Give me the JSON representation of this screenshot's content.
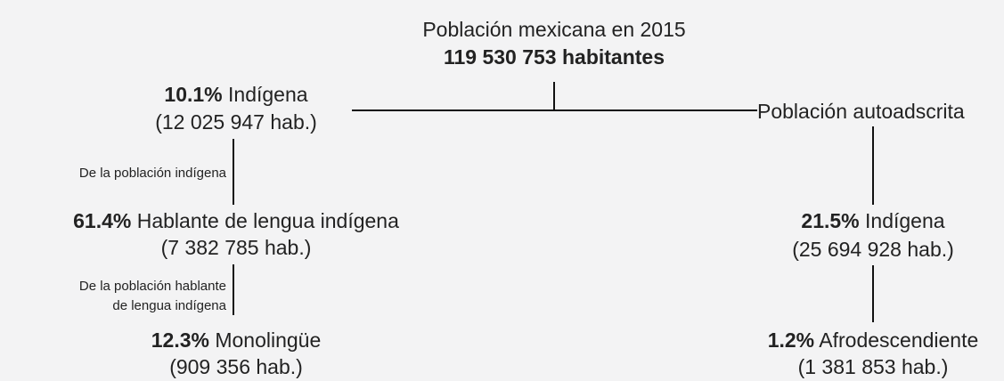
{
  "root": {
    "title": "Población mexicana en 2015",
    "total": "119 530 753 habitantes"
  },
  "left": {
    "indigena": {
      "percent": "10.1%",
      "label": "Indígena",
      "count": "(12 025 947 hab.)"
    },
    "edge1": "De la población indígena",
    "hablante": {
      "percent": "61.4%",
      "label": "Hablante de lengua indígena",
      "count": "(7 382 785 hab.)"
    },
    "edge2": [
      "De la población hablante",
      "de lengua indígena"
    ],
    "monolingue": {
      "percent": "12.3%",
      "label": "Monolingüe",
      "count": "(909 356 hab.)"
    }
  },
  "right": {
    "title": "Población autoadscrita",
    "indigena": {
      "percent": "21.5%",
      "label": "Indígena",
      "count": "(25 694 928 hab.)"
    },
    "afro": {
      "percent": "1.2%",
      "label": "Afrodescendiente",
      "count": "(1 381 853 hab.)"
    }
  }
}
